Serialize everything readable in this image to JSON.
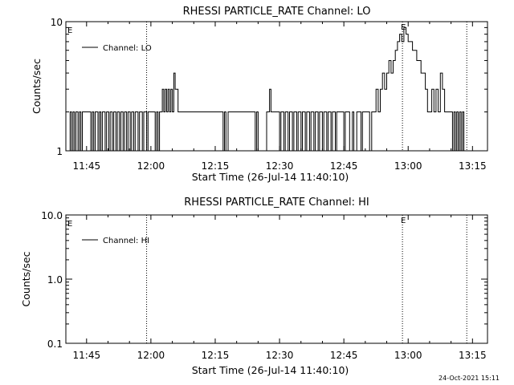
{
  "chart_data": [
    {
      "type": "line",
      "title": "RHESSI PARTICLE_RATE Channel: LO",
      "xlabel": "Start Time (26-Jul-14 11:40:10)",
      "ylabel": "Counts/sec",
      "yscale": "log",
      "ylim": [
        1,
        10
      ],
      "xlim": [
        "11:40:10",
        "13:18:30"
      ],
      "x_ticks": [
        "11:45",
        "12:00",
        "12:15",
        "12:30",
        "12:45",
        "13:00",
        "13:15"
      ],
      "y_ticks": [
        "1",
        "10"
      ],
      "legend": "top-left",
      "grid": false,
      "markers": [
        {
          "time": "11:59:00",
          "label": ""
        },
        {
          "time": "12:58:40",
          "label": "E"
        },
        {
          "time": "13:13:40",
          "label": ""
        }
      ],
      "edge_label": "E",
      "series": [
        {
          "name": "Channel: LO",
          "x": [
            "11:40:10",
            "11:41:10",
            "11:41:30",
            "11:41:50",
            "11:42:10",
            "11:42:30",
            "11:43:00",
            "11:43:20",
            "11:43:40",
            "11:44:00",
            "11:44:30",
            "11:46:00",
            "11:46:20",
            "11:46:40",
            "11:47:00",
            "11:47:40",
            "11:48:00",
            "11:48:20",
            "11:48:40",
            "11:49:20",
            "11:49:40",
            "11:50:10",
            "11:50:30",
            "11:51:00",
            "11:51:20",
            "11:51:50",
            "11:52:10",
            "11:52:40",
            "11:53:00",
            "11:53:30",
            "11:53:50",
            "11:54:20",
            "11:54:40",
            "11:55:10",
            "11:55:30",
            "11:56:00",
            "11:56:20",
            "11:57:00",
            "11:57:20",
            "11:58:00",
            "11:58:20",
            "11:59:00",
            "11:59:20",
            "12:00:00",
            "12:01:00",
            "12:01:20",
            "12:01:40",
            "12:02:00",
            "12:02:20",
            "12:02:40",
            "12:03:00",
            "12:03:20",
            "12:03:40",
            "12:04:00",
            "12:04:20",
            "12:04:40",
            "12:05:00",
            "12:05:20",
            "12:05:40",
            "12:06:00",
            "12:06:20",
            "12:06:40",
            "12:07:00",
            "12:07:20",
            "12:07:40",
            "12:08:00",
            "12:16:30",
            "12:16:50",
            "12:17:10",
            "12:17:30",
            "12:18:00",
            "12:24:00",
            "12:24:20",
            "12:24:40",
            "12:25:00",
            "12:27:00",
            "12:27:20",
            "12:27:40",
            "12:28:00",
            "12:29:00",
            "12:29:20",
            "12:30:00",
            "12:30:20",
            "12:31:00",
            "12:31:20",
            "12:32:00",
            "12:32:20",
            "12:33:00",
            "12:33:20",
            "12:34:00",
            "12:34:20",
            "12:35:00",
            "12:35:20",
            "12:36:00",
            "12:36:20",
            "12:37:00",
            "12:37:20",
            "12:38:00",
            "12:38:20",
            "12:39:00",
            "12:39:20",
            "12:40:00",
            "12:40:20",
            "12:41:00",
            "12:41:20",
            "12:42:00",
            "12:42:20",
            "12:43:00",
            "12:43:20",
            "12:45:00",
            "12:45:20",
            "12:46:00",
            "12:46:20",
            "12:47:00",
            "12:47:20",
            "12:48:00",
            "12:49:00",
            "12:49:20",
            "12:50:00",
            "12:51:00",
            "12:51:30",
            "12:52:00",
            "12:52:30",
            "12:53:00",
            "12:53:30",
            "12:54:00",
            "12:54:30",
            "12:55:00",
            "12:55:30",
            "12:56:00",
            "12:56:30",
            "12:57:00",
            "12:57:30",
            "12:58:00",
            "12:58:30",
            "12:59:00",
            "12:59:30",
            "13:00:00",
            "13:00:30",
            "13:01:00",
            "13:01:30",
            "13:02:00",
            "13:02:30",
            "13:03:00",
            "13:03:30",
            "13:04:00",
            "13:04:30",
            "13:05:00",
            "13:05:30",
            "13:06:00",
            "13:06:30",
            "13:07:00",
            "13:07:30",
            "13:08:00",
            "13:08:30",
            "13:09:00",
            "13:09:30",
            "13:10:00",
            "13:10:20",
            "13:10:40",
            "13:11:00",
            "13:11:20",
            "13:11:40",
            "13:12:00",
            "13:12:20",
            "13:12:40",
            "13:13:00",
            "13:13:20"
          ],
          "y": [
            1,
            2,
            1,
            2,
            1,
            2,
            1,
            2,
            1,
            2,
            2,
            1,
            2,
            1,
            2,
            1,
            2,
            1,
            2,
            1,
            2,
            1,
            2,
            1,
            2,
            1,
            2,
            1,
            2,
            1,
            2,
            1,
            2,
            1,
            2,
            1,
            2,
            1,
            2,
            1,
            2,
            1,
            2,
            2,
            1,
            2,
            1,
            2,
            2,
            3,
            2,
            3,
            2,
            3,
            2,
            3,
            2,
            4,
            3,
            3,
            2,
            2,
            2,
            2,
            2,
            2,
            2,
            1,
            2,
            1,
            2,
            2,
            1,
            2,
            1,
            2,
            2,
            3,
            2,
            2,
            2,
            1,
            2,
            1,
            2,
            1,
            2,
            1,
            2,
            1,
            2,
            1,
            2,
            1,
            2,
            1,
            2,
            1,
            2,
            1,
            2,
            1,
            2,
            1,
            2,
            1,
            2,
            1,
            2,
            1,
            2,
            2,
            1,
            2,
            1,
            2,
            1,
            2,
            2,
            1,
            2,
            2,
            3,
            2,
            3,
            4,
            3,
            4,
            5,
            4,
            5,
            6,
            7,
            8,
            7,
            9,
            8,
            7,
            7,
            6,
            6,
            5,
            5,
            4,
            4,
            3,
            2,
            2,
            3,
            2,
            3,
            2,
            4,
            3,
            2,
            2,
            2,
            2,
            1,
            2,
            1,
            2,
            1,
            2,
            1,
            2,
            1,
            1
          ]
        }
      ]
    },
    {
      "type": "line",
      "title": "RHESSI PARTICLE_RATE Channel: HI",
      "xlabel": "Start Time (26-Jul-14 11:40:10)",
      "ylabel": "Counts/sec",
      "yscale": "log",
      "ylim": [
        0.1,
        10
      ],
      "xlim": [
        "11:40:10",
        "13:18:30"
      ],
      "x_ticks": [
        "11:45",
        "12:00",
        "12:15",
        "12:30",
        "12:45",
        "13:00",
        "13:15"
      ],
      "y_ticks": [
        "10.0",
        "1.0",
        "0.1"
      ],
      "legend": "top-left",
      "grid": false,
      "markers": [
        {
          "time": "11:59:00",
          "label": ""
        },
        {
          "time": "12:58:40",
          "label": "E"
        },
        {
          "time": "13:13:40",
          "label": ""
        }
      ],
      "edge_label": "E",
      "series": [
        {
          "name": "Channel: HI",
          "x": [],
          "y": []
        }
      ]
    }
  ],
  "footer": {
    "timestamp": "24-Oct-2021 15:11"
  }
}
